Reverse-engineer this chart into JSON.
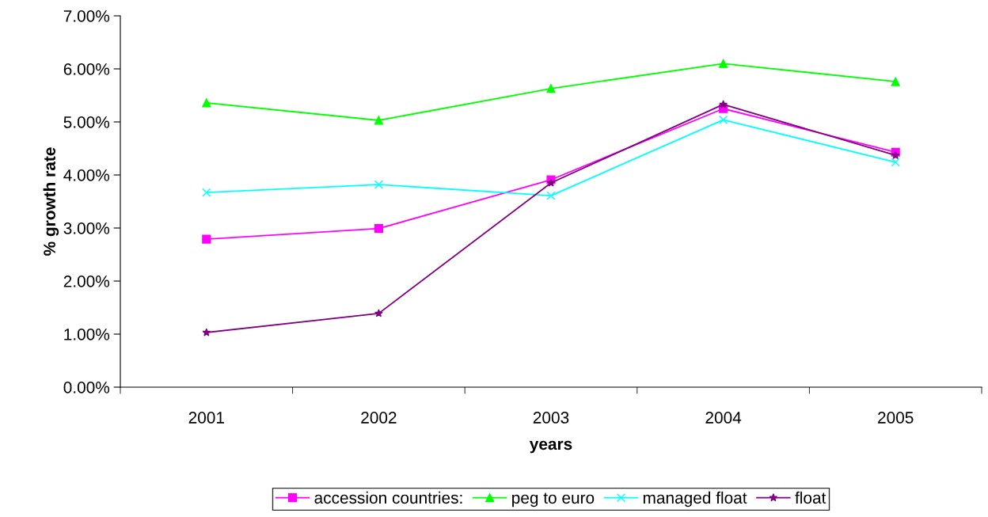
{
  "chart_data": {
    "type": "line",
    "xlabel": "years",
    "ylabel": "% growth rate",
    "categories": [
      "2001",
      "2002",
      "2003",
      "2004",
      "2005"
    ],
    "series": [
      {
        "name": "accession countries:",
        "color": "#ff00ff",
        "marker": "square",
        "values": [
          2.79,
          2.99,
          3.91,
          5.25,
          4.43
        ]
      },
      {
        "name": "peg to euro",
        "color": "#00ff00",
        "marker": "triangle",
        "values": [
          5.36,
          5.03,
          5.63,
          6.1,
          5.76
        ]
      },
      {
        "name": "managed float",
        "color": "#00ffff",
        "marker": "cross",
        "values": [
          3.67,
          3.82,
          3.61,
          5.04,
          4.24
        ]
      },
      {
        "name": "float",
        "color": "#800080",
        "marker": "star",
        "values": [
          1.03,
          1.39,
          3.85,
          5.33,
          4.37
        ]
      }
    ],
    "ylim": [
      0,
      7
    ],
    "yticks": [
      {
        "value": 0,
        "label": "0.00%"
      },
      {
        "value": 1,
        "label": "1.00%"
      },
      {
        "value": 2,
        "label": "2.00%"
      },
      {
        "value": 3,
        "label": "3.00%"
      },
      {
        "value": 4,
        "label": "4.00%"
      },
      {
        "value": 5,
        "label": "5.00%"
      },
      {
        "value": 6,
        "label": "6.00%"
      },
      {
        "value": 7,
        "label": "7.00%"
      }
    ],
    "grid": false,
    "legend": "bottom",
    "line_style": "solid"
  }
}
